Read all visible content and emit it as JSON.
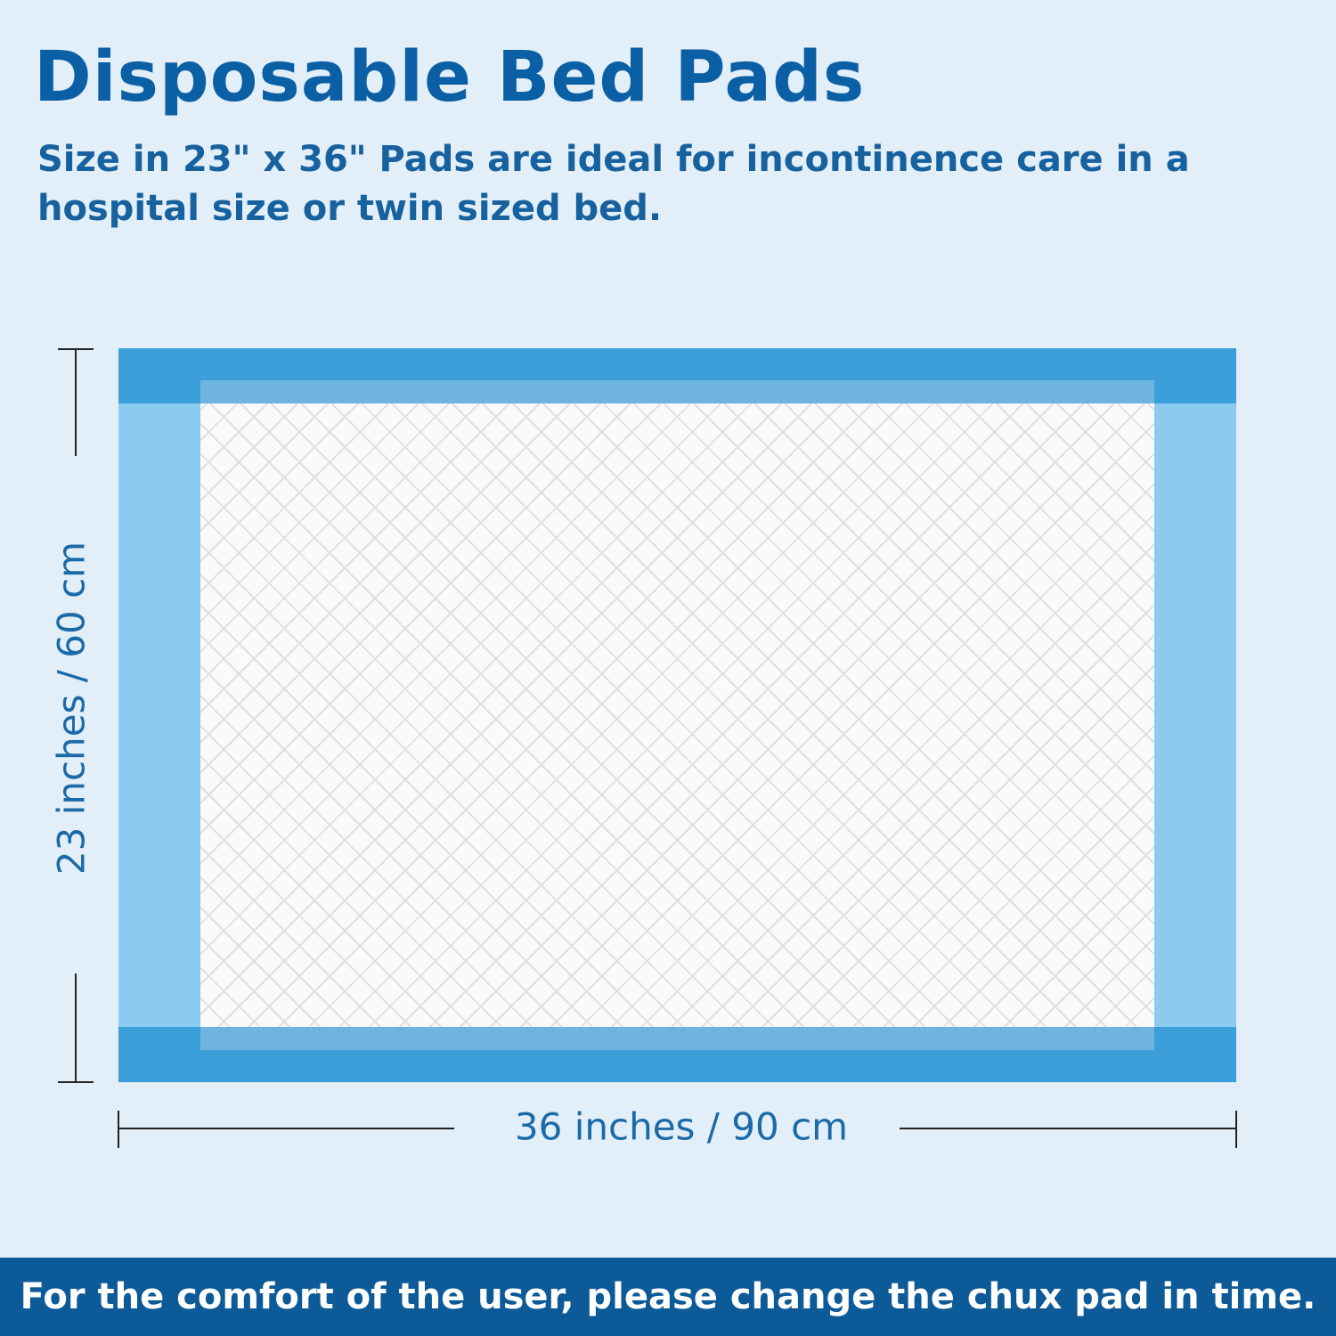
{
  "header": {
    "title": "Disposable Bed Pads",
    "subtitle": "Size in 23\" x 36\" Pads are ideal for incontinence care in a hospital size or twin sized bed."
  },
  "dimensions": {
    "height_label": "23 inches / 60 cm",
    "width_label": "36 inches / 90 cm"
  },
  "footer": {
    "text": "For the comfort of the user, please change the chux pad in time."
  },
  "colors": {
    "background": "#e2eff8",
    "title": "#0b5fa4",
    "pad_band": "#3c9fd9",
    "pad_side": "#8ccbf0",
    "footer": "#0d5a98"
  }
}
